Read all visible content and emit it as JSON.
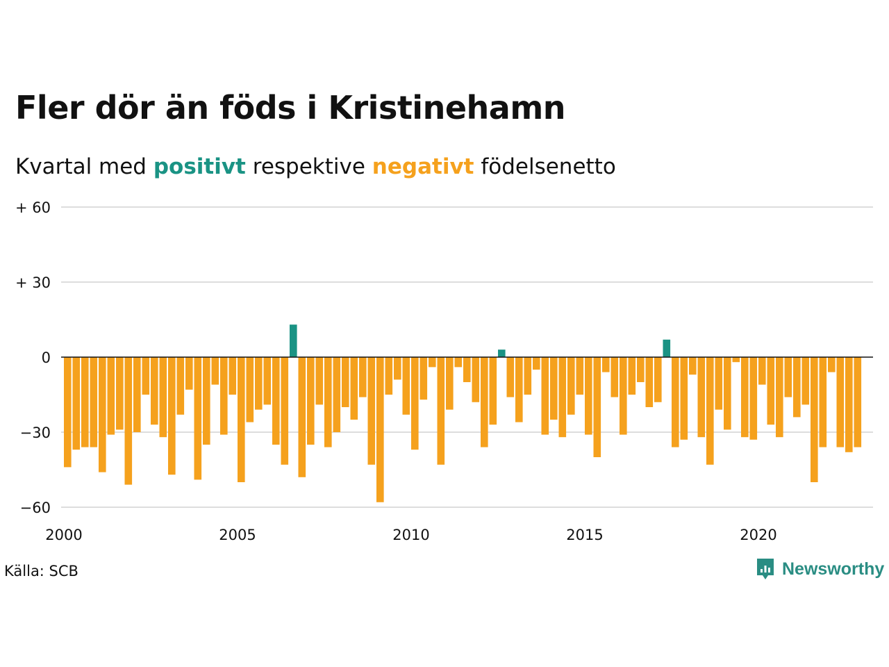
{
  "header": {
    "title": "Fler dör än föds i Kristinehamn",
    "subtitle_pre": "Kvartal med",
    "subtitle_pos": "positivt",
    "subtitle_mid": "respektive",
    "subtitle_neg": "negativt",
    "subtitle_post": "födelsenetto"
  },
  "footer": {
    "source": "Källa: SCB",
    "brand": "Newsworthy"
  },
  "colors": {
    "positive": "#1a9384",
    "negative": "#f5a11d",
    "grid": "#dddddd",
    "baseline": "#111111"
  },
  "chart_data": {
    "type": "bar",
    "title": "Fler dör än föds i Kristinehamn",
    "subtitle": "Kvartal med positivt respektive negativt födelsenetto",
    "xlabel": "",
    "ylabel": "",
    "ylim": [
      -60,
      60
    ],
    "yticks": [
      60,
      30,
      0,
      -30,
      -60
    ],
    "ytick_labels": [
      "+ 60",
      "+ 30",
      "0",
      "−30",
      "−60"
    ],
    "xticks": [
      "2000",
      "2005",
      "2010",
      "2015",
      "2020"
    ],
    "x_start": "2000 Q1",
    "frequency": "quarterly",
    "grid": true,
    "values": [
      -44,
      -37,
      -36,
      -36,
      -46,
      -31,
      -29,
      -51,
      -30,
      -15,
      -27,
      -32,
      -47,
      -23,
      -13,
      -49,
      -35,
      -11,
      -31,
      -15,
      -50,
      -26,
      -21,
      -19,
      -35,
      -43,
      13,
      -48,
      -35,
      -19,
      -36,
      -30,
      -20,
      -25,
      -16,
      -43,
      -58,
      -15,
      -9,
      -23,
      -37,
      -17,
      -4,
      -43,
      -21,
      -4,
      -10,
      -18,
      -36,
      -27,
      3,
      -16,
      -26,
      -15,
      -5,
      -31,
      -25,
      -32,
      -23,
      -15,
      -31,
      -40,
      -6,
      -16,
      -31,
      -15,
      -10,
      -20,
      -18,
      7,
      -36,
      -33,
      -7,
      -32,
      -43,
      -21,
      -29,
      -2,
      -32,
      -33,
      -11,
      -27,
      -32,
      -16,
      -24,
      -19,
      -50,
      -36,
      -6,
      -36,
      -38,
      -36
    ]
  }
}
